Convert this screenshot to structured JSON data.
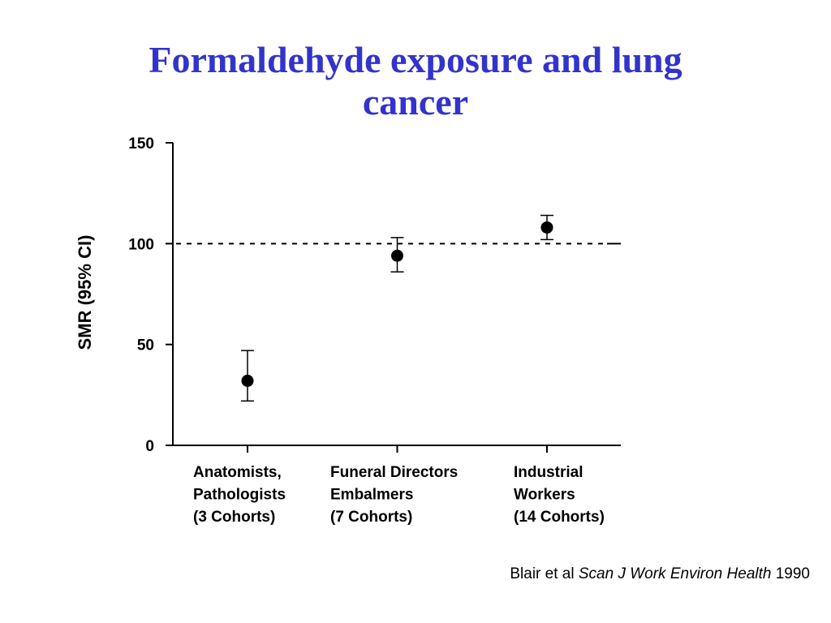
{
  "title": {
    "line1": "Formaldehyde exposure and lung",
    "line2": "cancer"
  },
  "chart_data": {
    "type": "scatter",
    "ylabel": "SMR (95% CI)",
    "xlabel": "",
    "ylim": [
      0,
      150
    ],
    "yticks": [
      0,
      50,
      100,
      150
    ],
    "reference_line": 100,
    "categories": [
      [
        "Anatomists,",
        "Pathologists",
        "(3 Cohorts)"
      ],
      [
        "Funeral Directors",
        "Embalmers",
        "(7 Cohorts)"
      ],
      [
        "Industrial",
        "Workers",
        "(14 Cohorts)"
      ]
    ],
    "points": [
      {
        "smr": 32,
        "ci_low": 22,
        "ci_high": 47
      },
      {
        "smr": 94,
        "ci_low": 86,
        "ci_high": 103
      },
      {
        "smr": 108,
        "ci_low": 102,
        "ci_high": 114
      }
    ],
    "grid": false,
    "colors": {
      "title": "#3333cc",
      "marks": "#000000"
    }
  },
  "citation": {
    "authors": "Blair et al ",
    "journal": "Scan J Work Environ Health",
    "year": " 1990"
  }
}
